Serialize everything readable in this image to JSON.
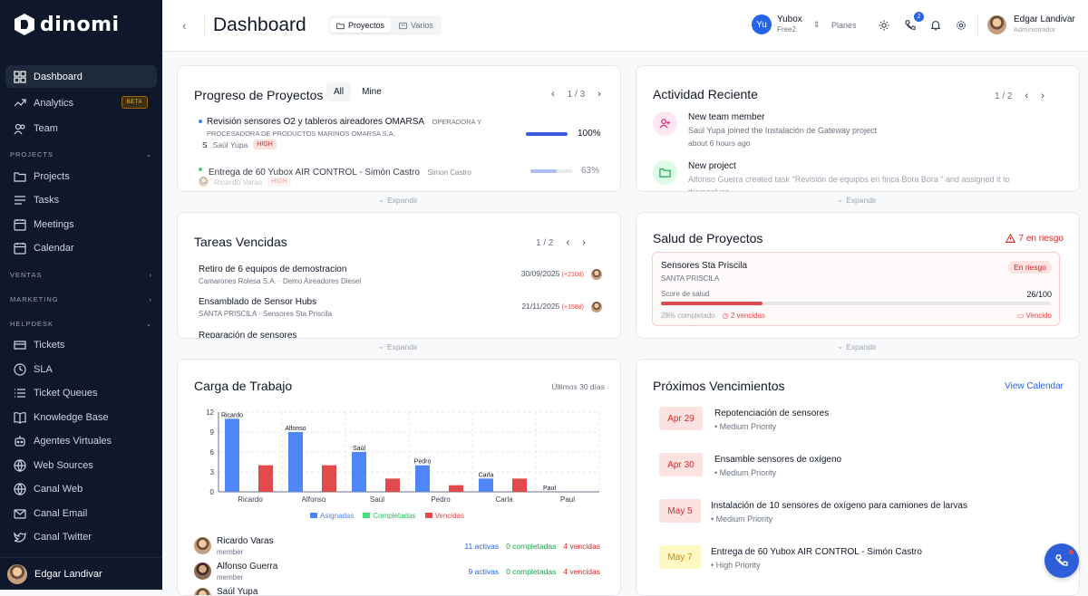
{
  "sidebar": {
    "logo": "dinomi",
    "items": [
      {
        "label": "Dashboard",
        "icon": "grid-icon",
        "active": true
      },
      {
        "label": "Analytics",
        "icon": "trend-icon",
        "badge": "BETA"
      },
      {
        "label": "Team",
        "icon": "users-icon"
      },
      {
        "label": "Projects",
        "icon": "folder-icon"
      },
      {
        "label": "Tasks",
        "icon": "list-icon"
      },
      {
        "label": "Meetings",
        "icon": "calendar-icon"
      },
      {
        "label": "Calendar",
        "icon": "calendar-icon"
      },
      {
        "label": "Tickets",
        "icon": "ticket-icon"
      },
      {
        "label": "SLA",
        "icon": "clock-icon"
      },
      {
        "label": "Ticket Queues",
        "icon": "queue-icon"
      },
      {
        "label": "Knowledge Base",
        "icon": "book-icon"
      },
      {
        "label": "Agentes Virtuales",
        "icon": "bot-icon"
      },
      {
        "label": "Web Sources",
        "icon": "globe-icon"
      },
      {
        "label": "Canal Web",
        "icon": "globe-icon"
      },
      {
        "label": "Canal Email",
        "icon": "mail-icon"
      },
      {
        "label": "Canal Twitter",
        "icon": "twitter-icon"
      }
    ],
    "sections": {
      "projects": "PROJECTS",
      "ventas": "VENTAS",
      "marketing": "MARKETING",
      "helpdesk": "HELPDESK"
    },
    "user": "Edgar Landivar"
  },
  "topbar": {
    "title": "Dashboard",
    "tabs": [
      "Proyectos",
      "Varios"
    ],
    "org": {
      "initials": "Yu",
      "name": "Yubox",
      "plan": "Free2"
    },
    "planes": "Planes",
    "notif_count": "2",
    "user": {
      "name": "Edgar Landivar",
      "role": "Administrador"
    }
  },
  "progreso": {
    "title": "Progreso de Proyectos",
    "filters": [
      "All",
      "Mine"
    ],
    "pager": "1 / 3",
    "items": [
      {
        "title": "Revisión sensores O2 y tableros aireadores OMARSA",
        "client": "OPERADORA Y",
        "client2": "PROCESADORA DE PRODUCTOS MARINOS OMARSA S.A.",
        "initial": "S",
        "owner": "Saúl Yupa",
        "priority": "HIGH",
        "percent": "100%",
        "value": 1.0,
        "dot": "#3b82f6"
      },
      {
        "title": "Entrega de 60 Yubox AIR CONTROL - Simón Castro",
        "client": "Simon Castro",
        "owner": "Ricardo Varas",
        "priority": "HIGH",
        "percent": "63%",
        "value": 0.63,
        "dot": "#22c55e"
      }
    ],
    "expand": "Expandir"
  },
  "actividad": {
    "title": "Actividad Reciente",
    "pager": "1 / 2",
    "items": [
      {
        "title": "New team member",
        "desc": "Saúl Yupa joined the Instalación de Gateway project",
        "time": "about 6 hours ago",
        "icon": "user-plus-icon"
      },
      {
        "title": "New project",
        "desc": "Alfonso Guerra created task \"Revisión de equipos en finca Bora Bora \" and assigned it to",
        "desc2": "themselves",
        "icon": "folder-icon"
      }
    ],
    "expand": "Expandir"
  },
  "tareas": {
    "title": "Tareas Vencidas",
    "pager": "1 / 2",
    "items": [
      {
        "title": "Retiro de 6 equipos de demostracion",
        "client": "Camarones Rolesa S.A.",
        "project": "Demo Aireadores Diesel",
        "date": "30/09/2025",
        "overdue": "(+210d)"
      },
      {
        "title": "Ensamblado de Sensor Hubs",
        "client": "SANTA PRISCILA",
        "project": "Sensores Sta Priscila",
        "date": "21/11/2025",
        "overdue": "(+158d)"
      },
      {
        "title": "Reparación de sensores"
      }
    ],
    "expand": "Expandir"
  },
  "salud": {
    "title": "Salud de Proyectos",
    "risk": "7 en riesgo",
    "item": {
      "name": "Sensores Sta Priscila",
      "client": "SANTA PRISCILA",
      "badge": "En riesgo",
      "score_label": "Score de salud",
      "score": "26/100",
      "score_value": 0.26,
      "completed": "28% completado",
      "overdue": "2 vencidas",
      "status": "Vencido"
    },
    "expand": "Expandir"
  },
  "carga": {
    "title": "Carga de Trabajo",
    "period": "Últimos 30 días",
    "members": [
      {
        "name": "Ricardo Varas",
        "role": "member",
        "activas": "11 activas",
        "completadas": "0 completadas",
        "vencidas": "4 vencidas"
      },
      {
        "name": "Alfonso Guerra",
        "role": "member",
        "activas": "9 activas",
        "completadas": "0 completadas",
        "vencidas": "4 vencidas"
      },
      {
        "name": "Saúl Yupa"
      }
    ]
  },
  "chart_data": {
    "type": "bar",
    "categories": [
      "Ricardo",
      "Alfonso",
      "Saúl",
      "Pedro",
      "Carla",
      "Paul"
    ],
    "series": [
      {
        "name": "Asignadas",
        "values": [
          11,
          9,
          6,
          4,
          2,
          0
        ],
        "color": "#4f86f7"
      },
      {
        "name": "Completadas",
        "values": [
          0,
          0,
          0,
          0,
          0,
          0
        ],
        "color": "#4ade80"
      },
      {
        "name": "Vencidas",
        "values": [
          4,
          4,
          2,
          1,
          2,
          0
        ],
        "color": "#e14b4b"
      }
    ],
    "yticks": [
      0,
      3,
      6,
      9,
      12
    ],
    "ylim": [
      0,
      12
    ],
    "legend": "bottom"
  },
  "vencimientos": {
    "title": "Próximos Vencimientos",
    "link": "View Calendar",
    "items": [
      {
        "date": "Apr 29",
        "title": "Repotenciación de sensores",
        "priority": "• Medium Priority",
        "tone": "red"
      },
      {
        "date": "Apr 30",
        "title": "Ensamble sensores de oxígeno",
        "priority": "• Medium Priority",
        "tone": "red"
      },
      {
        "date": "May 5",
        "title": "Instalación de 10 sensores de oxígeno para camiones de larvas",
        "priority": "• Medium Priority",
        "tone": "red"
      },
      {
        "date": "May 7",
        "title": "Entrega de 60 Yubox AIR CONTROL - Simón Castro",
        "priority": "• High Priority",
        "tone": "yellow"
      }
    ]
  }
}
